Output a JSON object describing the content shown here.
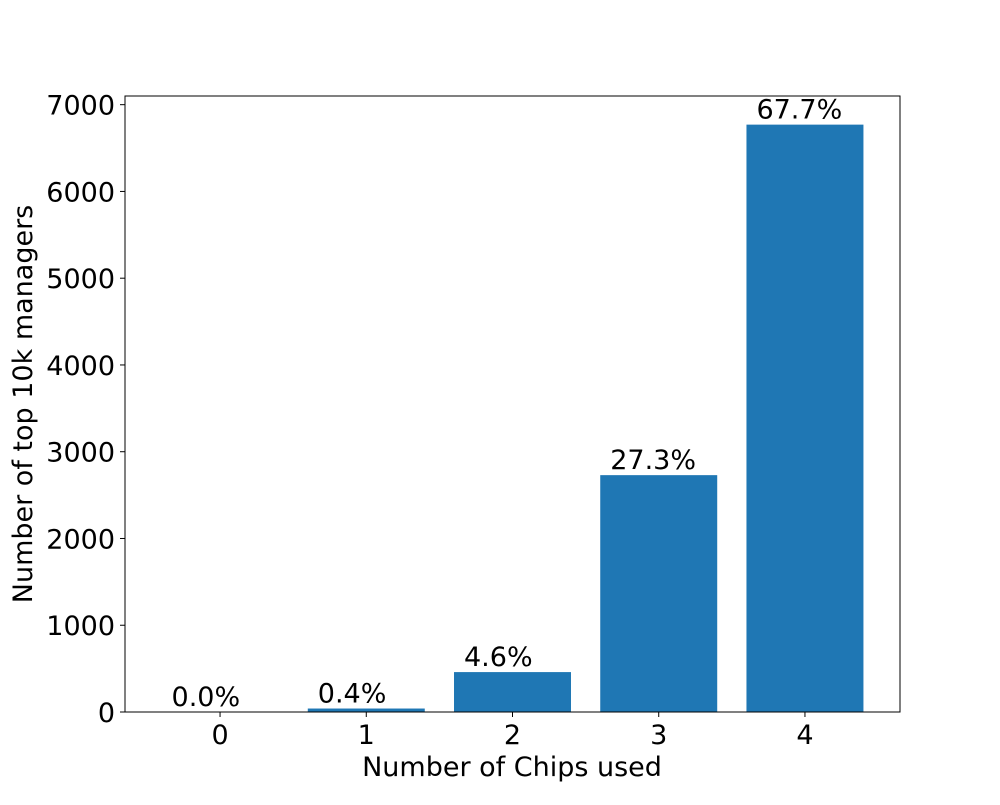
{
  "chart_data": {
    "type": "bar",
    "categories": [
      "0",
      "1",
      "2",
      "3",
      "4"
    ],
    "values": [
      0,
      40,
      460,
      2730,
      6770
    ],
    "bar_labels": [
      "0.0%",
      "0.4%",
      "4.6%",
      "27.3%",
      "67.7%"
    ],
    "xlabel": "Number of Chips used",
    "ylabel": "Number of top 10k managers",
    "ylim": [
      0,
      7100
    ],
    "yticks": [
      0,
      1000,
      2000,
      3000,
      4000,
      5000,
      6000,
      7000
    ],
    "grid": false,
    "legend": "none",
    "bar_color": "#1f77b4"
  }
}
